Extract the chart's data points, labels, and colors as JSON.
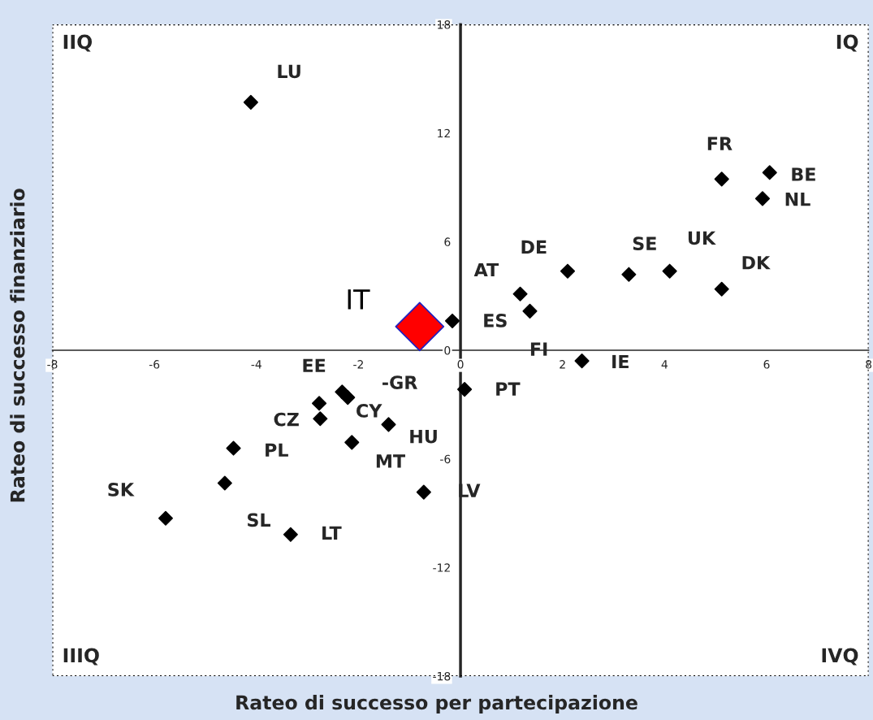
{
  "chart_data": {
    "type": "scatter",
    "xlabel": "Rateo di successo per partecipazione",
    "ylabel": "Rateo di successo finanziario",
    "xlim": [
      -8,
      8
    ],
    "xticks": [
      -8,
      -6,
      -4,
      -2,
      0,
      2,
      4,
      6,
      8
    ],
    "ylim": [
      -18,
      18
    ],
    "yticks": [
      -18,
      -12,
      -6,
      0,
      6,
      12,
      18
    ],
    "grid": false,
    "marker": "diamond",
    "series": [
      {
        "color": "#000000",
        "x": [
          -4.11,
          5.12,
          6.06,
          5.92,
          4.1,
          3.3,
          2.1,
          5.12,
          1.17,
          1.36,
          -0.16,
          2.38,
          0.08,
          -2.32,
          -2.21,
          -2.77,
          -2.75,
          -1.41,
          -2.13,
          -4.45,
          -4.62,
          -5.78,
          -3.33,
          -0.72
        ],
        "values": [
          13.7,
          9.46,
          9.82,
          8.38,
          4.37,
          4.19,
          4.37,
          3.38,
          3.11,
          2.16,
          1.62,
          -0.59,
          -2.16,
          -2.3,
          -2.61,
          -2.93,
          -3.78,
          -4.1,
          -5.09,
          -5.41,
          -7.34,
          -9.28,
          -10.18,
          -7.84
        ]
      },
      {
        "name": "IT",
        "color": "#ff0000",
        "x": [
          -0.8
        ],
        "values": [
          1.31
        ]
      }
    ],
    "annotations": [
      "IIQ",
      "IQ",
      "IIIQ",
      "IVQ",
      {
        "text": "LU",
        "x": -4.11,
        "y": 13.7
      },
      {
        "text": "FR",
        "x": 5.12,
        "y": 9.46
      },
      {
        "text": "BE",
        "x": 6.06,
        "y": 9.82
      },
      {
        "text": "NL",
        "x": 5.92,
        "y": 8.38
      },
      {
        "text": "UK",
        "x": 4.1,
        "y": 4.37
      },
      {
        "text": "SE",
        "x": 3.3,
        "y": 4.19
      },
      {
        "text": "DE",
        "x": 2.1,
        "y": 4.37
      },
      {
        "text": "DK",
        "x": 5.12,
        "y": 3.38
      },
      {
        "text": "AT",
        "x": 1.17,
        "y": 3.11
      },
      {
        "text": "ES",
        "x": -0.16,
        "y": 1.62
      },
      {
        "text": "FI",
        "x": 1.36,
        "y": 2.16
      },
      {
        "text": "IE",
        "x": 2.38,
        "y": -0.59
      },
      {
        "text": "PT",
        "x": 0.08,
        "y": -2.16
      },
      {
        "text": "EE",
        "x": -2.32,
        "y": -2.3
      },
      {
        "text": "-GR",
        "x": -2.21,
        "y": -2.61
      },
      {
        "text": "CY",
        "x": -2.77,
        "y": -2.93
      },
      {
        "text": "CZ",
        "x": -2.75,
        "y": -3.78
      },
      {
        "text": "HU",
        "x": -1.41,
        "y": -4.1
      },
      {
        "text": "MT",
        "x": -2.13,
        "y": -5.09
      },
      {
        "text": "PL",
        "x": -4.45,
        "y": -5.41
      },
      {
        "text": "SL",
        "x": -4.62,
        "y": -7.34
      },
      {
        "text": "SK",
        "x": -5.78,
        "y": -9.28
      },
      {
        "text": "LT",
        "x": -3.33,
        "y": -10.18
      },
      {
        "text": "LV",
        "x": -0.72,
        "y": -7.84
      }
    ]
  }
}
